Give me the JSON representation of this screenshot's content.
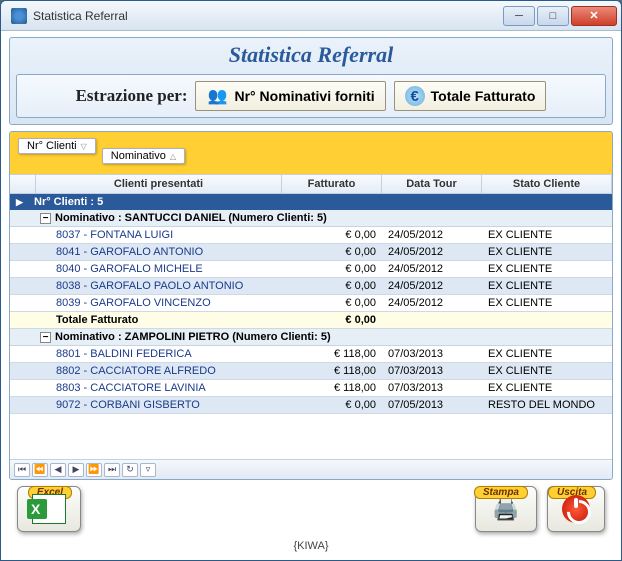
{
  "window": {
    "title": "Statistica Referral"
  },
  "panel": {
    "title": "Statistica Referral",
    "extraction_label": "Estrazione per:",
    "opt_nominativi": "Nr° Nominativi forniti",
    "opt_fatturato": "Totale Fatturato"
  },
  "grid": {
    "group_pills": {
      "primary": "Nr° Clienti",
      "secondary": "Nominativo"
    },
    "columns": {
      "clienti": "Clienti presentati",
      "fatturato": "Fatturato",
      "data": "Data Tour",
      "stato": "Stato Cliente"
    },
    "group_label": "Nr° Clienti : 5",
    "subgroups": [
      {
        "header": "Nominativo : SANTUCCI DANIEL (Numero Clienti: 5)",
        "rows": [
          {
            "cli": "8037 - FONTANA LUIGI",
            "fat": "€ 0,00",
            "data": "24/05/2012",
            "stato": "EX CLIENTE"
          },
          {
            "cli": "8041 - GAROFALO ANTONIO",
            "fat": "€ 0,00",
            "data": "24/05/2012",
            "stato": "EX CLIENTE"
          },
          {
            "cli": "8040 - GAROFALO MICHELE",
            "fat": "€ 0,00",
            "data": "24/05/2012",
            "stato": "EX CLIENTE"
          },
          {
            "cli": "8038 - GAROFALO PAOLO ANTONIO",
            "fat": "€ 0,00",
            "data": "24/05/2012",
            "stato": "EX CLIENTE"
          },
          {
            "cli": "8039 - GAROFALO VINCENZO",
            "fat": "€ 0,00",
            "data": "24/05/2012",
            "stato": "EX CLIENTE"
          }
        ],
        "total_label": "Totale Fatturato",
        "total_value": "€ 0,00"
      },
      {
        "header": "Nominativo : ZAMPOLINI PIETRO (Numero Clienti: 5)",
        "rows": [
          {
            "cli": "8801 - BALDINI FEDERICA",
            "fat": "€ 118,00",
            "data": "07/03/2013",
            "stato": "EX CLIENTE"
          },
          {
            "cli": "8802 - CACCIATORE ALFREDO",
            "fat": "€ 118,00",
            "data": "07/03/2013",
            "stato": "EX CLIENTE"
          },
          {
            "cli": "8803 - CACCIATORE LAVINIA",
            "fat": "€ 118,00",
            "data": "07/03/2013",
            "stato": "EX CLIENTE"
          },
          {
            "cli": "9072 - CORBANI GISBERTO",
            "fat": "€ 0,00",
            "data": "07/05/2013",
            "stato": "RESTO DEL MONDO"
          }
        ]
      }
    ]
  },
  "footer": {
    "excel": "Excel",
    "stampa": "Stampa",
    "uscita": "Uscita"
  },
  "status": "{KIWA}",
  "colors": {
    "accent_yellow": "#ffcf33",
    "group_blue": "#2a5a9a",
    "row_alt": "#dde8f4"
  }
}
